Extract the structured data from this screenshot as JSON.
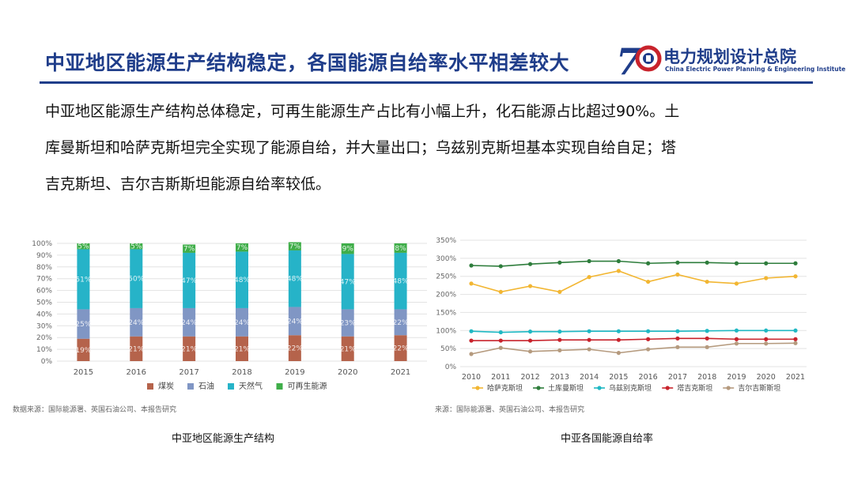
{
  "header": {
    "title": "中亚地区能源生产结构稳定，各国能源自给率水平相差较大",
    "logo_cn": "电力规划设计总院",
    "logo_en": "China Electric Power Planning & Engineering Institute",
    "logo_mark": "70"
  },
  "body": {
    "lines": [
      "中亚地区能源生产结构总体稳定，可再生能源生产占比有小幅上升，化石能源占比超过90%。土",
      "库曼斯坦和哈萨克斯坦完全实现了能源自给，并大量出口；乌兹别克斯坦基本实现自给自足；塔",
      "吉克斯坦、吉尔吉斯斯坦能源自给率较低。"
    ]
  },
  "chart_data": [
    {
      "type": "bar",
      "stacked": true,
      "title": "中亚地区能源生产结构",
      "source": "数据来源：国际能源署、英国石油公司、本报告研究",
      "categories": [
        "2015",
        "2016",
        "2017",
        "2018",
        "2019",
        "2020",
        "2021"
      ],
      "ylim": [
        0,
        100
      ],
      "yticks": [
        "0%",
        "10%",
        "20%",
        "30%",
        "40%",
        "50%",
        "60%",
        "70%",
        "80%",
        "90%",
        "100%"
      ],
      "legend_position": "bottom",
      "series": [
        {
          "name": "煤炭",
          "color": "#b5634b",
          "values": [
            19,
            21,
            21,
            21,
            22,
            21,
            22
          ],
          "labels": [
            "19%",
            "21%",
            "21%",
            "21%",
            "22%",
            "21%",
            "22%"
          ]
        },
        {
          "name": "石油",
          "color": "#8096c4",
          "values": [
            25,
            24,
            24,
            24,
            24,
            23,
            22
          ],
          "labels": [
            "25%",
            "24%",
            "24%",
            "24%",
            "24%",
            "23%",
            "22%"
          ]
        },
        {
          "name": "天然气",
          "color": "#26b3c8",
          "values": [
            51,
            50,
            47,
            48,
            48,
            47,
            48
          ],
          "labels": [
            "51%",
            "50%",
            "47%",
            "48%",
            "48%",
            "47%",
            "48%"
          ]
        },
        {
          "name": "可再生能源",
          "color": "#3fae49",
          "values": [
            5,
            5,
            7,
            7,
            7,
            9,
            8
          ],
          "labels": [
            "5%",
            "5%",
            "7%",
            "7%",
            "7%",
            "9%",
            "8%"
          ]
        }
      ]
    },
    {
      "type": "line",
      "title": "中亚各国能源自给率",
      "source": "来源：国际能源署、英国石油公司、本报告研究",
      "x": [
        "2010",
        "2011",
        "2012",
        "2013",
        "2014",
        "2015",
        "2016",
        "2017",
        "2018",
        "2019",
        "2020",
        "2021"
      ],
      "ylim": [
        0,
        350
      ],
      "yticks": [
        "0%",
        "50%",
        "100%",
        "150%",
        "200%",
        "250%",
        "300%",
        "350%"
      ],
      "legend_position": "bottom",
      "series": [
        {
          "name": "哈萨克斯坦",
          "color": "#f2b632",
          "values": [
            230,
            207,
            223,
            207,
            248,
            265,
            235,
            255,
            235,
            230,
            245,
            250
          ]
        },
        {
          "name": "土库曼斯坦",
          "color": "#2e7d3c",
          "values": [
            280,
            278,
            284,
            288,
            292,
            292,
            286,
            288,
            288,
            286,
            286,
            286
          ]
        },
        {
          "name": "乌兹别克斯坦",
          "color": "#1fb8c3",
          "values": [
            98,
            95,
            97,
            97,
            98,
            98,
            98,
            98,
            99,
            100,
            100,
            100
          ]
        },
        {
          "name": "塔吉克斯坦",
          "color": "#c8232c",
          "values": [
            72,
            72,
            72,
            74,
            74,
            74,
            76,
            78,
            78,
            76,
            76,
            76
          ]
        },
        {
          "name": "吉尔吉斯斯坦",
          "color": "#b59a7e",
          "values": [
            35,
            52,
            42,
            45,
            48,
            38,
            48,
            54,
            54,
            64,
            64,
            65
          ]
        }
      ]
    }
  ]
}
